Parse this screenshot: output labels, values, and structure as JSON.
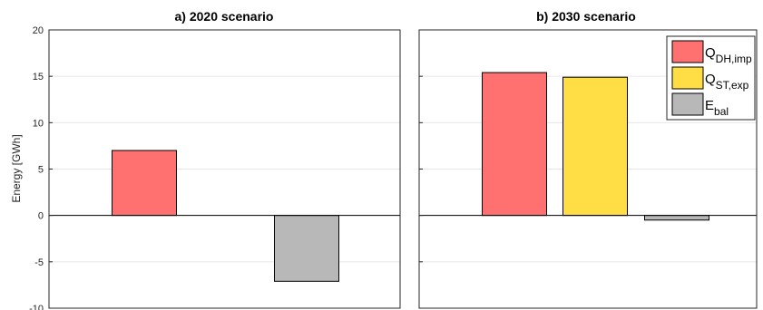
{
  "chart_data": [
    {
      "type": "bar",
      "title": "a) 2020 scenario",
      "ylabel": "Energy [GWh]",
      "ylim": [
        -10,
        20
      ],
      "yticks": [
        -10,
        -5,
        0,
        5,
        10,
        15,
        20
      ],
      "grid": true,
      "series": [
        {
          "key": "Q_DH_imp",
          "color": "#ff7070",
          "value": 7.0
        },
        {
          "key": "Q_ST_exp",
          "color": "#ffdd44",
          "value": 0.0
        },
        {
          "key": "E_bal",
          "color": "#b8b8b8",
          "value": -7.1
        }
      ]
    },
    {
      "type": "bar",
      "title": "b) 2030 scenario",
      "ylabel": "",
      "ylim": [
        -10,
        20
      ],
      "yticks": [
        -10,
        -5,
        0,
        5,
        10,
        15,
        20
      ],
      "grid": true,
      "legend_position": "top-right",
      "series": [
        {
          "key": "Q_DH_imp",
          "color": "#ff7070",
          "value": 15.4
        },
        {
          "key": "Q_ST_exp",
          "color": "#ffdd44",
          "value": 14.9
        },
        {
          "key": "E_bal",
          "color": "#b8b8b8",
          "value": -0.5
        }
      ]
    }
  ],
  "legend": [
    {
      "key": "Q_DH_imp",
      "main": "Q",
      "sub": "DH,imp",
      "color": "#ff7070"
    },
    {
      "key": "Q_ST_exp",
      "main": "Q",
      "sub": "ST,exp",
      "color": "#ffdd44"
    },
    {
      "key": "E_bal",
      "main": "E",
      "sub": "bal",
      "color": "#b8b8b8"
    }
  ]
}
